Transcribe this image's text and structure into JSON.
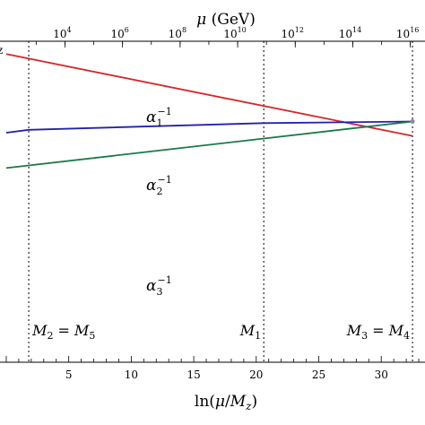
{
  "chart_data": {
    "type": "line",
    "xlabel_parts": {
      "pre": "ln(",
      "mu": "μ",
      "slash": "/",
      "m": "M",
      "sub": "z",
      "post": ")"
    },
    "top_axis_label_parts": {
      "mu": "μ",
      "unit": " (GeV)"
    },
    "xlim": [
      -0.5,
      33.5
    ],
    "ylim": [
      0,
      1
    ],
    "x_ticks": [
      5,
      10,
      15,
      20,
      25,
      30
    ],
    "top_ticks": [
      {
        "base": "10",
        "exp": "4"
      },
      {
        "base": "10",
        "exp": "6"
      },
      {
        "base": "10",
        "exp": "8"
      },
      {
        "base": "10",
        "exp": "10"
      },
      {
        "base": "10",
        "exp": "12"
      },
      {
        "base": "10",
        "exp": "14"
      },
      {
        "base": "10",
        "exp": "16"
      }
    ],
    "top_tick_offset": 0,
    "series": [
      {
        "name_base": "α",
        "sub": "1",
        "sup": "−1",
        "color": "#d62728",
        "x": [
          0,
          32.5
        ],
        "y": [
          0.96,
          0.705
        ]
      },
      {
        "name_base": "α",
        "sub": "2",
        "sup": "−1",
        "color": "#2222aa",
        "x": [
          0,
          1.8,
          20.6,
          32.5
        ],
        "y": [
          0.715,
          0.724,
          0.745,
          0.75
        ]
      },
      {
        "name_base": "α",
        "sub": "3",
        "sup": "−1",
        "color": "#1a7a45",
        "x": [
          0,
          32.5
        ],
        "y": [
          0.605,
          0.75
        ]
      }
    ],
    "thresholds": [
      {
        "x": 1.8,
        "label": [
          {
            "t": "M"
          },
          {
            "s": "2"
          },
          {
            "t": " = M"
          },
          {
            "s": "5"
          }
        ]
      },
      {
        "x": 20.6,
        "label": [
          {
            "t": "M"
          },
          {
            "s": "1"
          }
        ]
      },
      {
        "x": 32.5,
        "label": [
          {
            "t": "M"
          },
          {
            "s": "3"
          },
          {
            "t": " = M"
          },
          {
            "s": "4"
          }
        ]
      }
    ]
  },
  "edge_fragment": "z"
}
